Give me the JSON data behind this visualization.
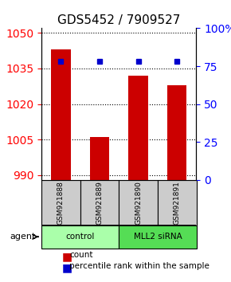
{
  "title": "GDS5452 / 7909527",
  "samples": [
    "GSM921888",
    "GSM921889",
    "GSM921890",
    "GSM921891"
  ],
  "bar_values": [
    1043,
    1006,
    1032,
    1028
  ],
  "percentile_values": [
    78,
    78,
    78,
    78
  ],
  "ylim_left": [
    988,
    1052
  ],
  "yticks_left": [
    990,
    1005,
    1020,
    1035,
    1050
  ],
  "ylim_right": [
    0,
    100
  ],
  "yticks_right": [
    0,
    25,
    50,
    75,
    100
  ],
  "bar_color": "#cc0000",
  "percentile_color": "#0000cc",
  "bar_width": 0.5,
  "groups": [
    {
      "label": "control",
      "samples": [
        0,
        1
      ],
      "color": "#aaffaa"
    },
    {
      "label": "MLL2 siRNA",
      "samples": [
        2,
        3
      ],
      "color": "#55dd55"
    }
  ],
  "group_label": "agent",
  "sample_box_color": "#cccccc",
  "dotted_line_color": "#555555",
  "background_color": "#ffffff"
}
